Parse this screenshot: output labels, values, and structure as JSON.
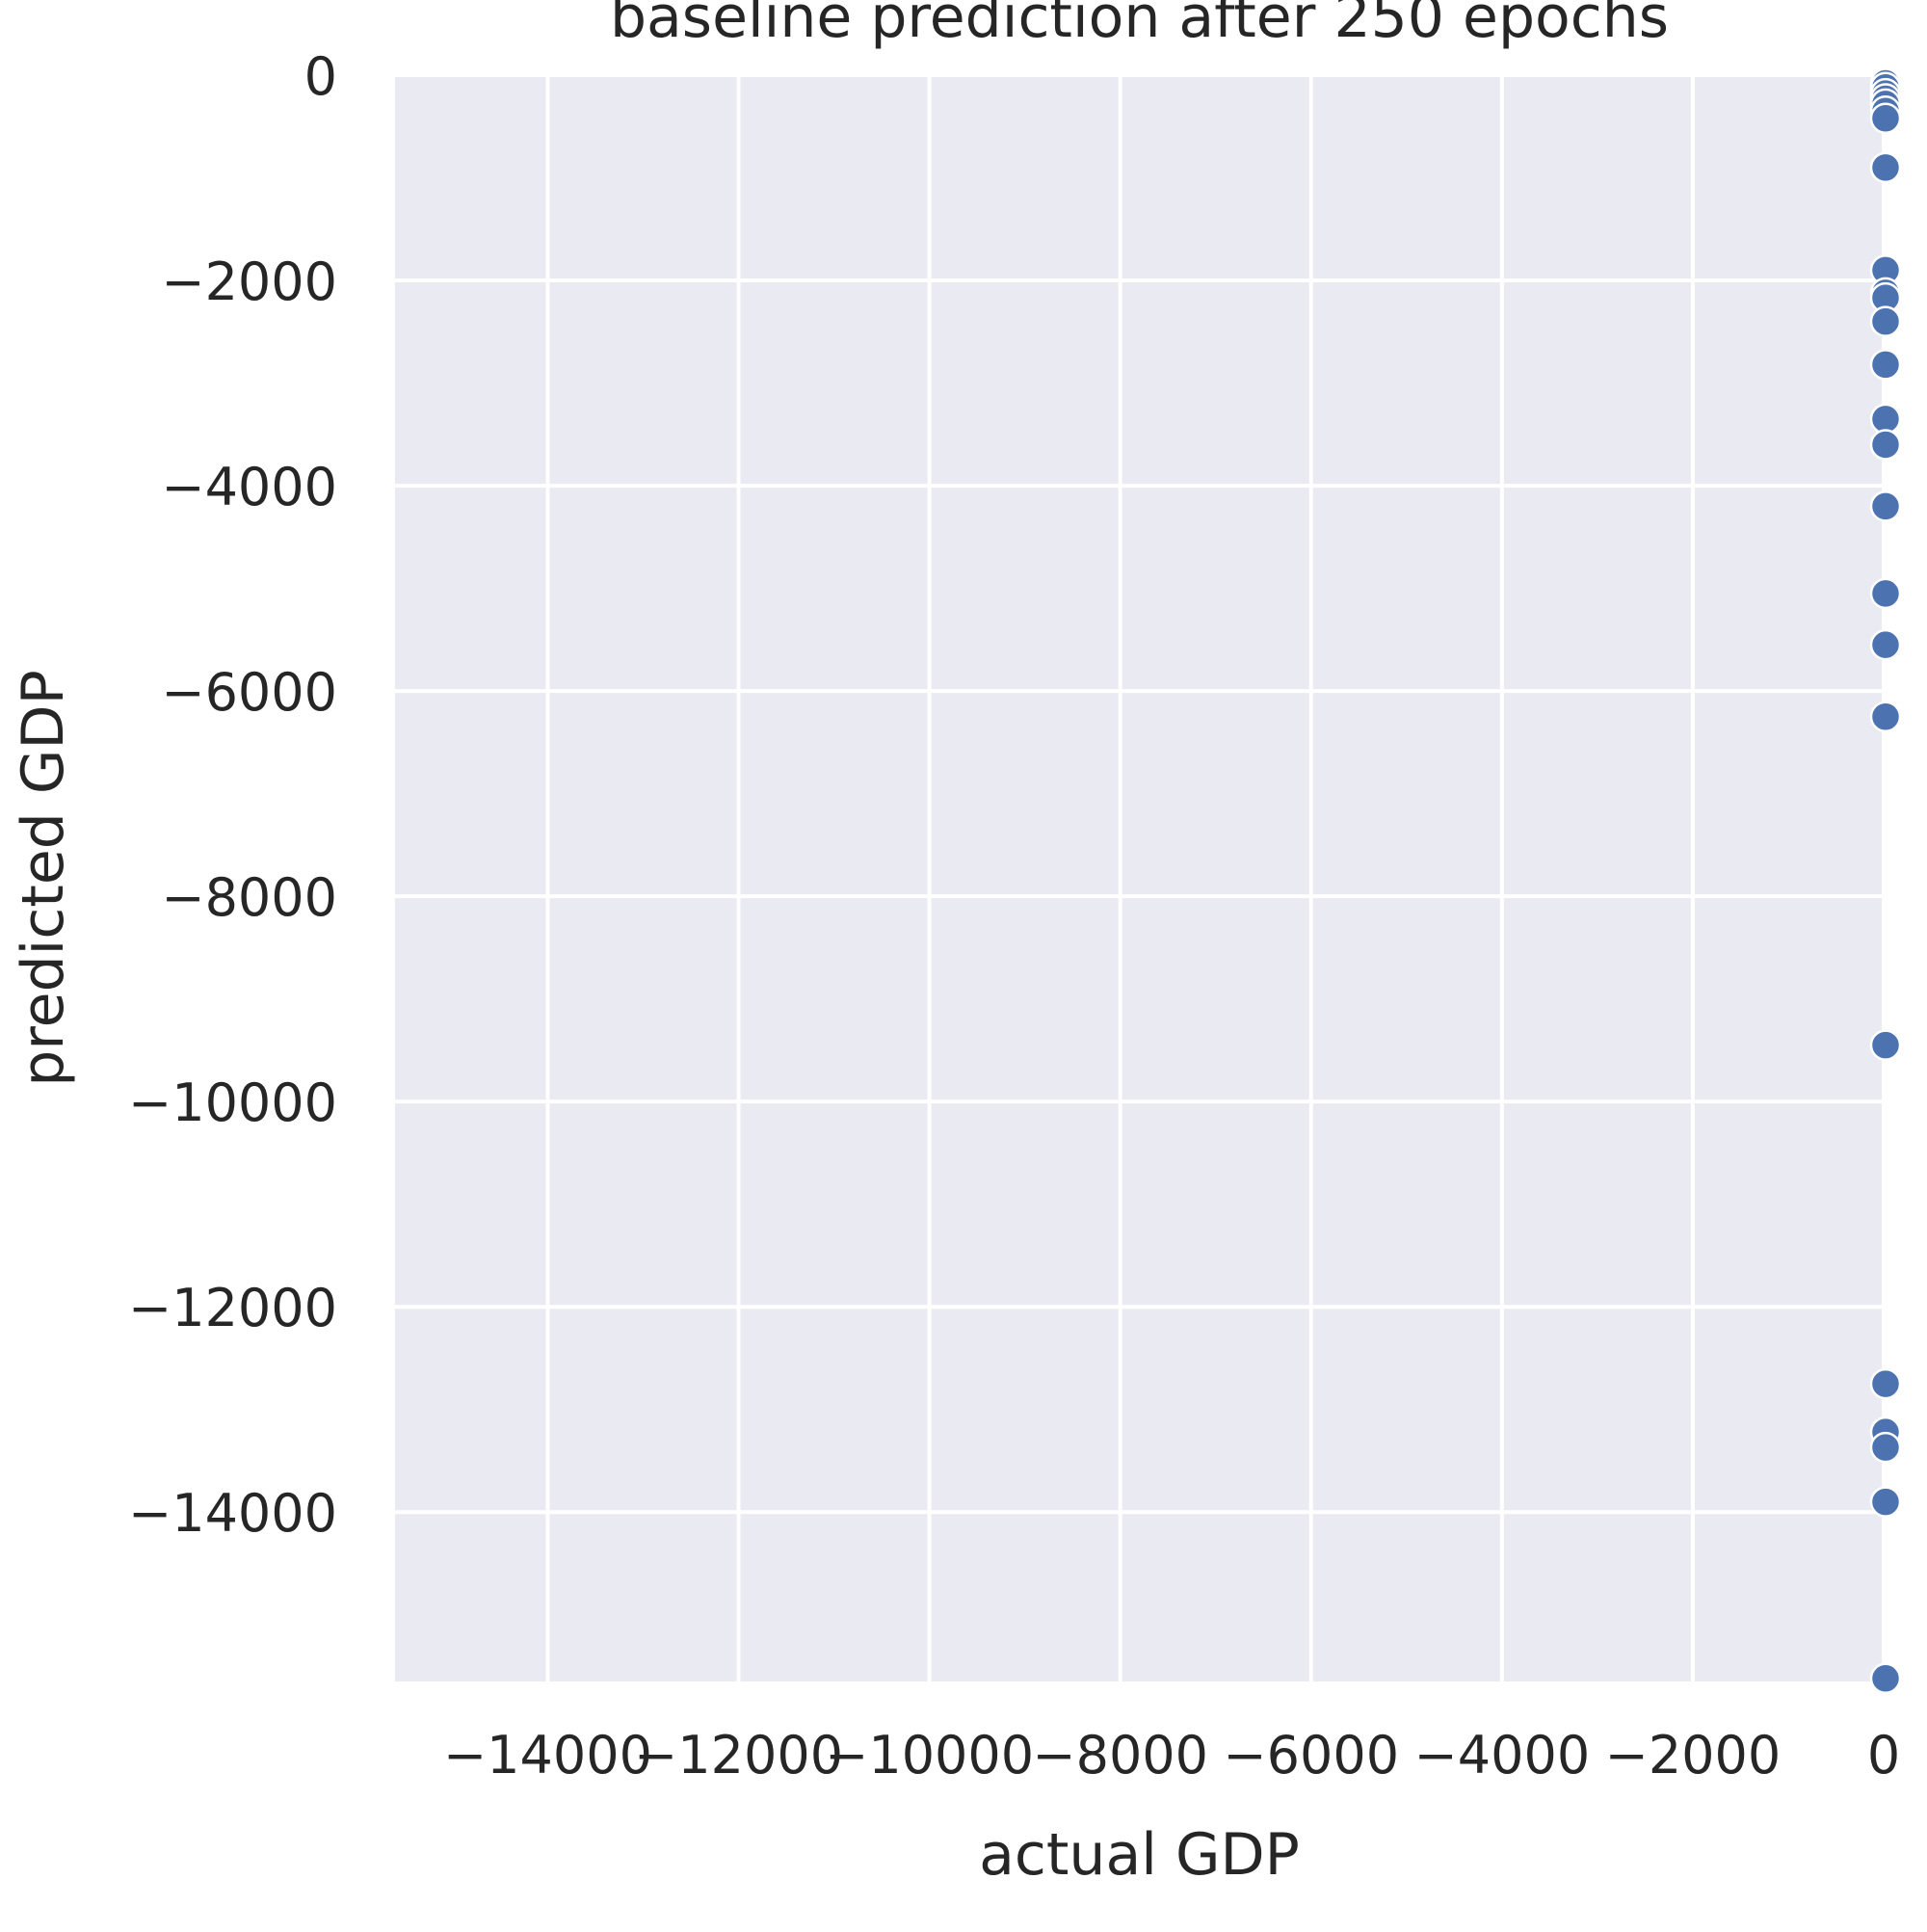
{
  "chart_data": {
    "type": "scatter",
    "title": "baseline prediction after 250 epochs",
    "xlabel": "actual GDP",
    "ylabel": "predicted GDP",
    "xlim": [
      -15600,
      0
    ],
    "ylim": [
      -15650,
      0
    ],
    "xticks": [
      -14000,
      -12000,
      -10000,
      -8000,
      -6000,
      -4000,
      -2000,
      0
    ],
    "xtick_labels": [
      "−14000",
      "−12000",
      "−10000",
      "−8000",
      "−6000",
      "−4000",
      "−2000",
      "0"
    ],
    "yticks": [
      0,
      -2000,
      -4000,
      -6000,
      -8000,
      -10000,
      -12000,
      -14000
    ],
    "ytick_labels": [
      "0",
      "−2000",
      "−4000",
      "−6000",
      "−8000",
      "−10000",
      "−12000",
      "−14000"
    ],
    "grid": true,
    "colors": {
      "marker": "#4c72b0",
      "marker_edge": "#ffffff",
      "plot_background": "#eaeaf2",
      "grid": "#ffffff",
      "text": "#262626"
    },
    "points": [
      {
        "x": 20,
        "y": -80
      },
      {
        "x": 20,
        "y": -120
      },
      {
        "x": 20,
        "y": -180
      },
      {
        "x": 20,
        "y": -230
      },
      {
        "x": 20,
        "y": -280
      },
      {
        "x": 20,
        "y": -350
      },
      {
        "x": 20,
        "y": -420
      },
      {
        "x": 20,
        "y": -900
      },
      {
        "x": 20,
        "y": -1900
      },
      {
        "x": 20,
        "y": -2120
      },
      {
        "x": 20,
        "y": -2170
      },
      {
        "x": 20,
        "y": -2400
      },
      {
        "x": 20,
        "y": -2820
      },
      {
        "x": 20,
        "y": -3350
      },
      {
        "x": 20,
        "y": -3600
      },
      {
        "x": 20,
        "y": -4200
      },
      {
        "x": 20,
        "y": -5050
      },
      {
        "x": 20,
        "y": -5550
      },
      {
        "x": 20,
        "y": -6250
      },
      {
        "x": 20,
        "y": -9450
      },
      {
        "x": 20,
        "y": -12750
      },
      {
        "x": 20,
        "y": -13220
      },
      {
        "x": 20,
        "y": -13370
      },
      {
        "x": 20,
        "y": -13900
      },
      {
        "x": 20,
        "y": -15620
      }
    ]
  }
}
